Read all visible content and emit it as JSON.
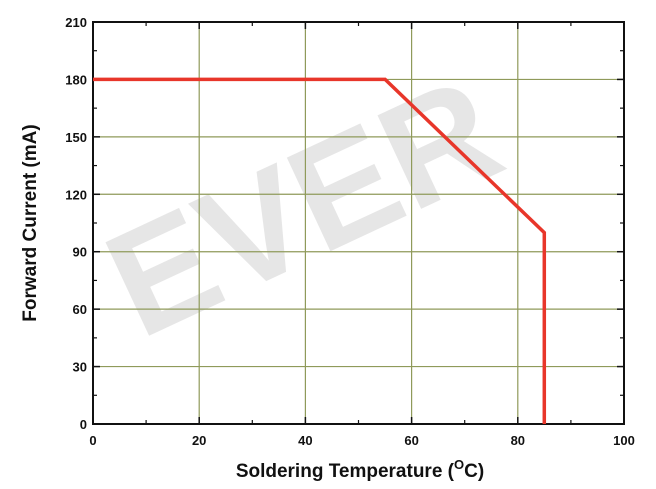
{
  "chart_data": {
    "type": "line",
    "xlabel": "Soldering Temperature (",
    "xlabel_unit_super": "O",
    "xlabel_unit_rest": "C)",
    "ylabel": "Forward Current (mA)",
    "xlim": [
      0,
      100
    ],
    "ylim": [
      0,
      210
    ],
    "xticks": [
      0,
      20,
      40,
      60,
      80,
      100
    ],
    "yticks": [
      0,
      30,
      60,
      90,
      120,
      150,
      180,
      210
    ],
    "grid": true,
    "series": [
      {
        "x": [
          0,
          55,
          85,
          85
        ],
        "y": [
          180,
          180,
          100,
          0
        ],
        "color": "#e8362a"
      }
    ],
    "watermark": "EVER"
  },
  "colors": {
    "grid": "#8f9a5a",
    "axis": "#111111",
    "line": "#e8362a"
  }
}
